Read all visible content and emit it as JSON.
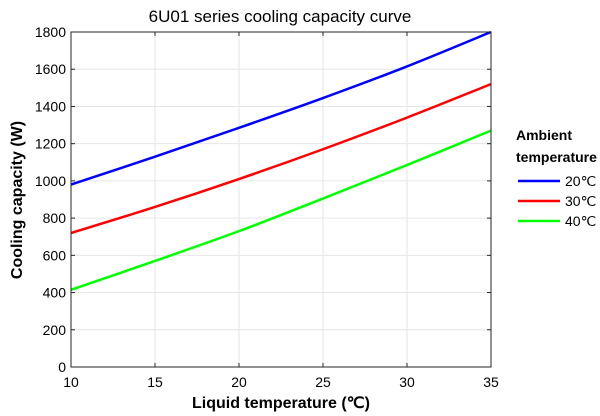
{
  "chart_data": {
    "type": "line",
    "title": "6U01 series cooling capacity curve",
    "xlabel": "Liquid temperature (℃)",
    "ylabel": "Cooling capacity (W)",
    "xlim": [
      10,
      35
    ],
    "ylim": [
      0,
      1800
    ],
    "xticks": [
      10,
      15,
      20,
      25,
      30,
      35
    ],
    "yticks": [
      0,
      200,
      400,
      600,
      800,
      1000,
      1200,
      1400,
      1600,
      1800
    ],
    "grid": true,
    "legend": {
      "title_lines": [
        "Ambient",
        "temperature"
      ],
      "placement": "right"
    },
    "x": [
      10,
      15,
      20,
      25,
      30,
      35
    ],
    "series": [
      {
        "name": "20℃",
        "color": "#0000ff",
        "values": [
          980,
          1130,
          1285,
          1445,
          1615,
          1800
        ]
      },
      {
        "name": "30℃",
        "color": "#ff0000",
        "values": [
          720,
          860,
          1010,
          1170,
          1340,
          1520
        ]
      },
      {
        "name": "40℃",
        "color": "#00ff00",
        "values": [
          415,
          570,
          730,
          905,
          1085,
          1270
        ]
      }
    ]
  }
}
